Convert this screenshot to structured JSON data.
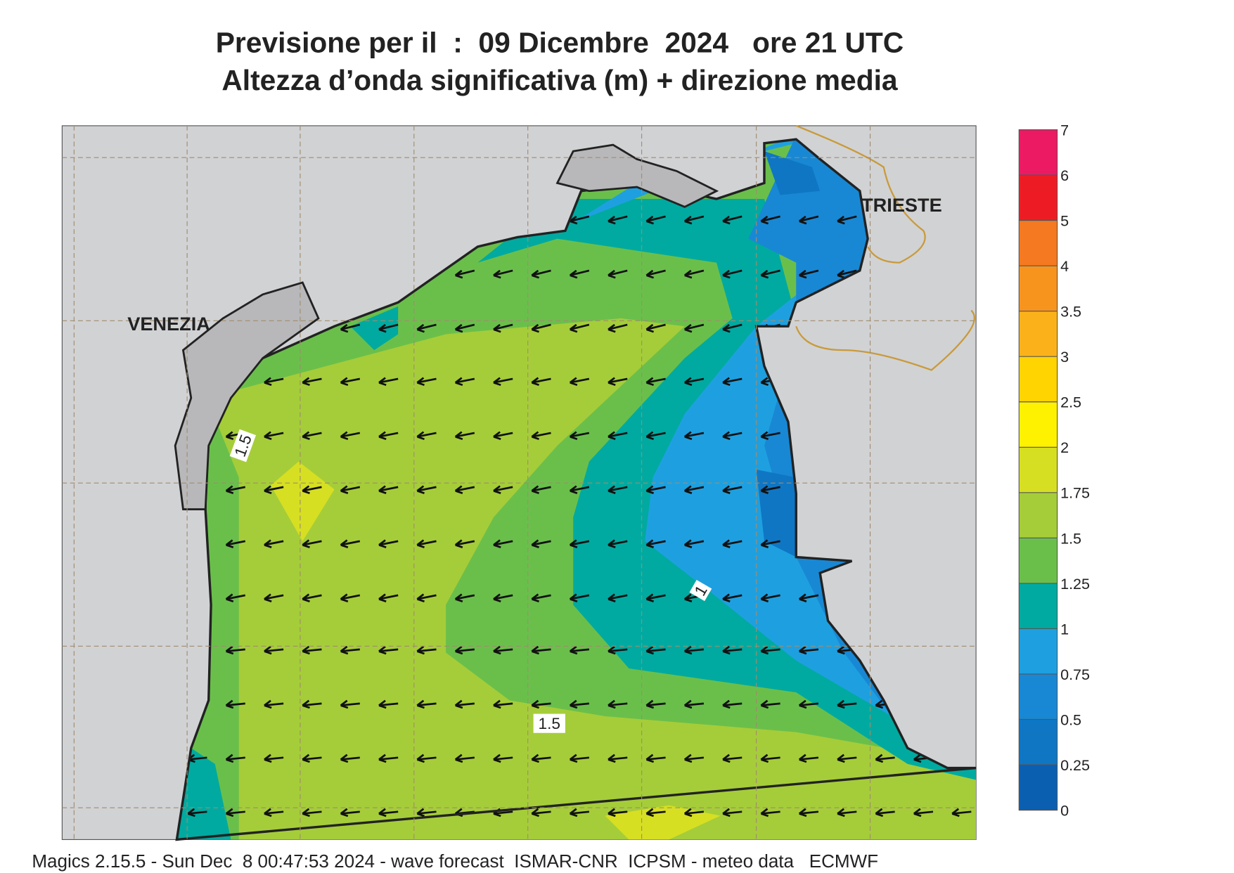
{
  "header": {
    "title": "Previsione per il  :  09 Dicembre  2024   ore 21 UTC",
    "subtitle": "Altezza d’onda significativa (m) + direzione media"
  },
  "map": {
    "places": [
      "VENEZIA",
      "TRIESTE"
    ],
    "contour_labels": [
      "1.5",
      "1.5",
      "1"
    ]
  },
  "legend": {
    "ticks": [
      0,
      0.25,
      0.5,
      0.75,
      1,
      1.25,
      1.5,
      1.75,
      2,
      2.5,
      3,
      3.5,
      4,
      5,
      6,
      7
    ],
    "colors": [
      "#0b5fb0",
      "#0f76c4",
      "#1888d4",
      "#1ea0e0",
      "#00aaa0",
      "#6abf4b",
      "#a5cd39",
      "#d7df23",
      "#fff200",
      "#ffd400",
      "#fbb21a",
      "#f7941d",
      "#f47920",
      "#ed1c24",
      "#ec1a63"
    ]
  },
  "footer": "Magics 2.15.5 - Sun Dec  8 00:47:53 2024 - wave forecast  ISMAR-CNR  ICPSM - meteo data   ECMWF"
}
